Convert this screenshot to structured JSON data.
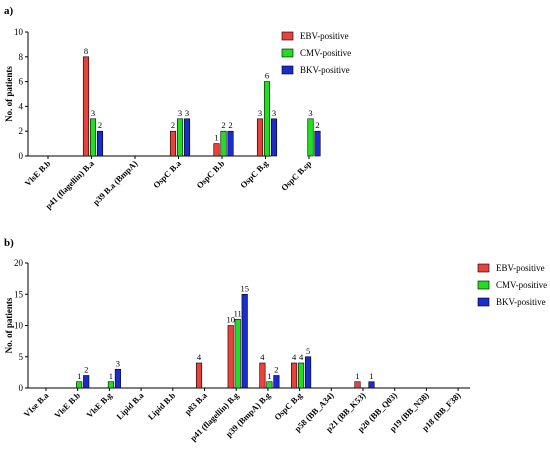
{
  "chart_data": [
    {
      "type": "bar",
      "panel_label": "a)",
      "ylabel": "No. of patients",
      "ylim": [
        0,
        10
      ],
      "yticks": [
        0,
        2,
        4,
        6,
        8,
        10
      ],
      "categories": [
        "VlsE B.b",
        "p41 (flagellin) B.a",
        "p39 B.a (BmpA)",
        "OspC B.a",
        "OspC B.b",
        "OspC B.g",
        "OspC B.sp"
      ],
      "series": [
        {
          "name": "EBV-positive",
          "color": "#e8423c",
          "values": [
            0,
            8,
            0,
            2,
            1,
            3,
            0
          ]
        },
        {
          "name": "CMV-positive",
          "color": "#22dd22",
          "values": [
            0,
            3,
            0,
            3,
            2,
            6,
            3
          ]
        },
        {
          "name": "BKV-positive",
          "color": "#1a2ccc",
          "values": [
            0,
            2,
            0,
            3,
            2,
            3,
            2
          ]
        }
      ],
      "legend_position": "right"
    },
    {
      "type": "bar",
      "panel_label": "b)",
      "ylabel": "No. of patients",
      "ylim": [
        0,
        20
      ],
      "yticks": [
        0,
        5,
        10,
        15,
        20
      ],
      "categories": [
        "VIse B.a",
        "VlsE B.b",
        "VlsE B.g",
        "Lipid B.a",
        "Lipid B.b",
        "p83 B.a",
        "p41 (flagellin) B.g",
        "p39 (BmpA) B.g",
        "OspC B.g",
        "p58 (BB_A34)",
        "p21 (BB_K53)",
        "p20 (BB_Q03)",
        "p19 (BB_N38)",
        "p18 (BB_F38)"
      ],
      "series": [
        {
          "name": "EBV-positive",
          "color": "#e8423c",
          "values": [
            0,
            0,
            0,
            0,
            0,
            4,
            10,
            4,
            4,
            0,
            1,
            0,
            0,
            0
          ]
        },
        {
          "name": "CMV-positive",
          "color": "#22dd22",
          "values": [
            0,
            1,
            1,
            0,
            0,
            0,
            11,
            1,
            4,
            0,
            0,
            0,
            0,
            0
          ]
        },
        {
          "name": "BKV-positive",
          "color": "#1a2ccc",
          "values": [
            0,
            2,
            3,
            0,
            0,
            0,
            15,
            2,
            5,
            0,
            1,
            0,
            0,
            0
          ]
        }
      ],
      "legend_position": "right"
    }
  ]
}
